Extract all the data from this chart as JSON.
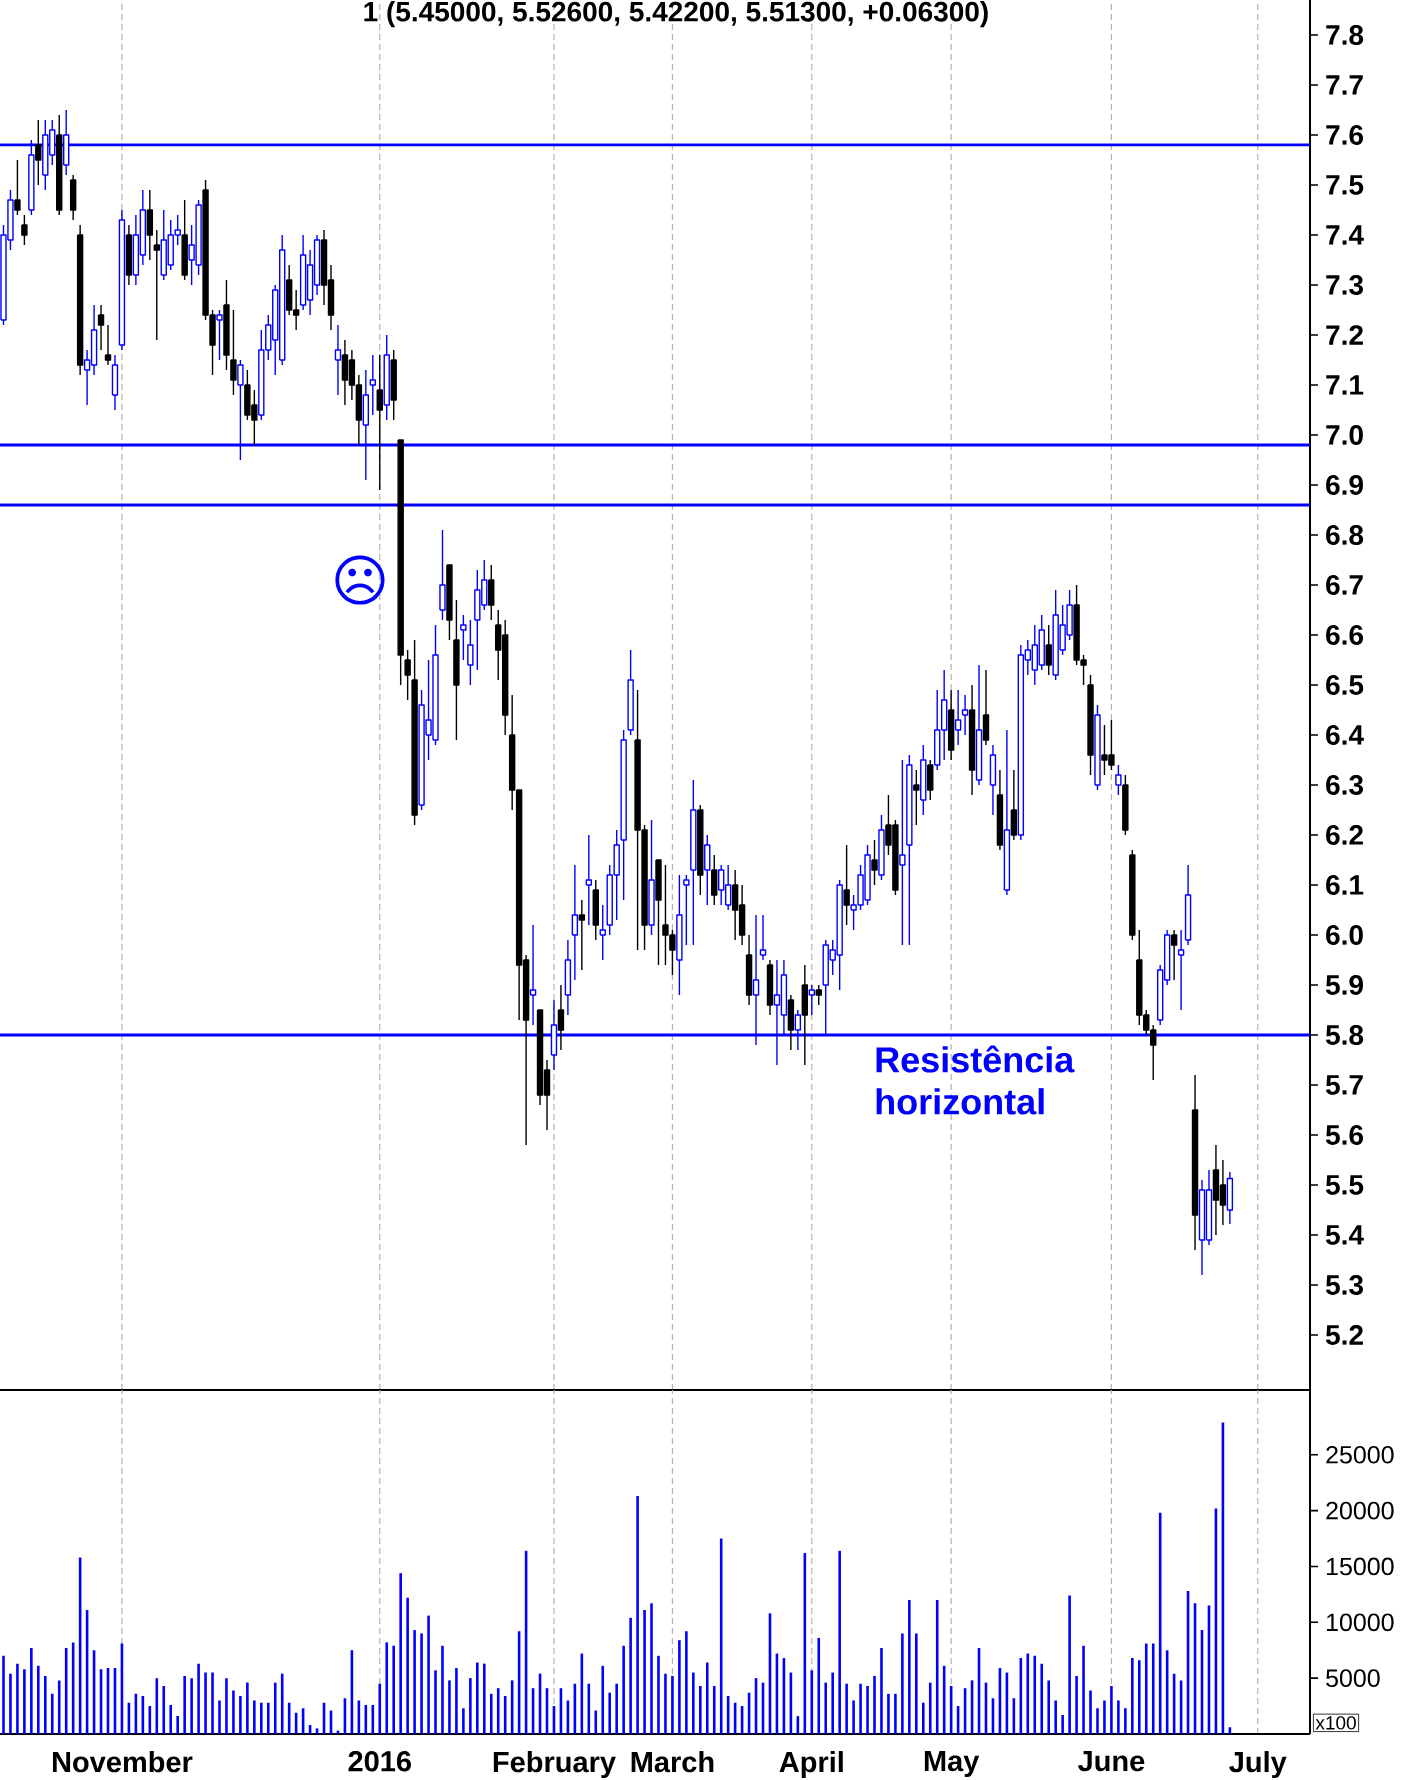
{
  "chart_data": [
    {
      "type": "candlestick",
      "title": "1 (5.45000, 5.52600, 5.42200, 5.51300, +0.06300)",
      "categories": [
        null,
        null,
        null,
        null,
        null,
        null,
        null,
        null,
        null,
        null,
        null,
        null,
        null,
        null,
        null,
        null,
        null,
        null,
        null,
        null,
        null,
        null,
        null,
        null,
        null,
        null,
        null,
        null,
        null,
        null,
        null,
        null,
        null,
        null,
        null,
        null,
        null,
        null,
        null,
        null,
        null,
        null,
        null,
        null,
        null,
        null,
        null,
        null,
        null,
        null,
        null,
        null,
        null,
        null,
        null,
        null,
        null,
        null,
        null,
        null,
        null,
        null,
        null,
        null,
        null,
        null,
        null,
        null,
        null,
        null,
        null,
        null,
        null,
        null,
        null,
        null,
        null,
        null,
        null,
        null,
        null,
        null,
        null,
        null,
        null,
        null,
        null,
        null,
        null,
        null,
        null,
        null,
        null,
        null,
        null,
        null,
        null,
        null,
        null,
        null,
        null,
        null,
        null,
        null,
        null,
        null,
        null,
        null,
        null,
        null,
        null,
        null,
        null,
        null,
        null,
        null,
        null,
        null,
        null,
        null,
        null,
        null,
        null,
        null,
        null,
        null,
        null,
        null,
        null,
        null,
        null,
        null,
        null,
        null,
        null,
        null,
        null,
        null,
        null,
        null,
        null,
        null,
        null,
        null,
        null,
        null,
        null,
        null,
        null,
        null,
        null,
        null,
        null,
        null,
        null,
        null,
        null,
        null,
        null,
        null,
        null,
        null,
        null,
        null,
        null,
        null,
        null,
        null,
        null,
        null,
        null,
        null,
        null,
        null,
        null,
        null,
        null,
        null,
        null,
        null,
        null,
        null,
        null,
        null,
        null,
        null,
        null,
        null
      ],
      "ohlc": [
        [
          7.23,
          7.42,
          7.22,
          7.4
        ],
        [
          7.39,
          7.49,
          7.37,
          7.47
        ],
        [
          7.47,
          7.55,
          7.44,
          7.45
        ],
        [
          7.42,
          7.44,
          7.38,
          7.4
        ],
        [
          7.45,
          7.59,
          7.44,
          7.56
        ],
        [
          7.58,
          7.63,
          7.5,
          7.55
        ],
        [
          7.52,
          7.63,
          7.49,
          7.6
        ],
        [
          7.56,
          7.63,
          7.54,
          7.61
        ],
        [
          7.6,
          7.64,
          7.44,
          7.45
        ],
        [
          7.54,
          7.65,
          7.52,
          7.6
        ],
        [
          7.51,
          7.52,
          7.43,
          7.45
        ],
        [
          7.4,
          7.42,
          7.12,
          7.14
        ],
        [
          7.13,
          7.17,
          7.06,
          7.15
        ],
        [
          7.14,
          7.26,
          7.12,
          7.21
        ],
        [
          7.24,
          7.26,
          7.17,
          7.22
        ],
        [
          7.16,
          7.22,
          7.14,
          7.15
        ],
        [
          7.08,
          7.16,
          7.05,
          7.14
        ],
        [
          7.18,
          7.45,
          7.17,
          7.43
        ],
        [
          7.4,
          7.42,
          7.3,
          7.32
        ],
        [
          7.32,
          7.44,
          7.3,
          7.4
        ],
        [
          7.36,
          7.49,
          7.34,
          7.45
        ],
        [
          7.45,
          7.49,
          7.35,
          7.4
        ],
        [
          7.38,
          7.41,
          7.19,
          7.37
        ],
        [
          7.32,
          7.45,
          7.31,
          7.39
        ],
        [
          7.34,
          7.43,
          7.33,
          7.4
        ],
        [
          7.4,
          7.44,
          7.38,
          7.41
        ],
        [
          7.4,
          7.47,
          7.31,
          7.32
        ],
        [
          7.35,
          7.42,
          7.3,
          7.38
        ],
        [
          7.34,
          7.47,
          7.32,
          7.46
        ],
        [
          7.49,
          7.51,
          7.23,
          7.24
        ],
        [
          7.24,
          7.25,
          7.12,
          7.18
        ],
        [
          7.23,
          7.25,
          7.15,
          7.24
        ],
        [
          7.26,
          7.31,
          7.13,
          7.16
        ],
        [
          7.15,
          7.25,
          7.08,
          7.11
        ],
        [
          7.1,
          7.15,
          6.95,
          7.14
        ],
        [
          7.1,
          7.13,
          7.03,
          7.04
        ],
        [
          7.06,
          7.09,
          6.98,
          7.03
        ],
        [
          7.04,
          7.21,
          7.03,
          7.17
        ],
        [
          7.17,
          7.24,
          7.15,
          7.22
        ],
        [
          7.19,
          7.3,
          7.12,
          7.29
        ],
        [
          7.15,
          7.4,
          7.14,
          7.37
        ],
        [
          7.31,
          7.34,
          7.24,
          7.25
        ],
        [
          7.25,
          7.29,
          7.21,
          7.24
        ],
        [
          7.26,
          7.4,
          7.25,
          7.36
        ],
        [
          7.27,
          7.37,
          7.24,
          7.34
        ],
        [
          7.3,
          7.4,
          7.28,
          7.39
        ],
        [
          7.39,
          7.41,
          7.26,
          7.3
        ],
        [
          7.31,
          7.34,
          7.21,
          7.24
        ],
        [
          7.15,
          7.22,
          7.08,
          7.17
        ],
        [
          7.16,
          7.19,
          7.06,
          7.11
        ],
        [
          7.15,
          7.17,
          7.07,
          7.1
        ],
        [
          7.1,
          7.12,
          6.98,
          7.03
        ],
        [
          7.02,
          7.13,
          6.91,
          7.08
        ],
        [
          7.1,
          7.16,
          7.04,
          7.11
        ],
        [
          7.09,
          7.16,
          6.89,
          7.05
        ],
        [
          7.06,
          7.2,
          7.03,
          7.16
        ],
        [
          7.15,
          7.17,
          7.03,
          7.07
        ],
        [
          6.99,
          6.99,
          6.5,
          6.56
        ],
        [
          6.55,
          6.57,
          6.47,
          6.52
        ],
        [
          6.51,
          6.59,
          6.22,
          6.24
        ],
        [
          6.26,
          6.49,
          6.25,
          6.46
        ],
        [
          6.4,
          6.55,
          6.35,
          6.43
        ],
        [
          6.39,
          6.62,
          6.38,
          6.56
        ],
        [
          6.65,
          6.81,
          6.63,
          6.7
        ],
        [
          6.74,
          6.74,
          6.59,
          6.63
        ],
        [
          6.59,
          6.67,
          6.39,
          6.5
        ],
        [
          6.61,
          6.64,
          6.55,
          6.62
        ],
        [
          6.54,
          6.63,
          6.5,
          6.58
        ],
        [
          6.63,
          6.73,
          6.53,
          6.69
        ],
        [
          6.66,
          6.75,
          6.65,
          6.71
        ],
        [
          6.71,
          6.74,
          6.63,
          6.66
        ],
        [
          6.62,
          6.65,
          6.51,
          6.57
        ],
        [
          6.6,
          6.63,
          6.4,
          6.44
        ],
        [
          6.4,
          6.48,
          6.25,
          6.29
        ],
        [
          6.29,
          6.29,
          5.83,
          5.94
        ],
        [
          5.95,
          5.96,
          5.58,
          5.83
        ],
        [
          5.88,
          6.02,
          5.82,
          5.89
        ],
        [
          5.85,
          5.85,
          5.66,
          5.68
        ],
        [
          5.73,
          5.75,
          5.61,
          5.68
        ],
        [
          5.76,
          5.87,
          5.73,
          5.82
        ],
        [
          5.85,
          5.9,
          5.77,
          5.81
        ],
        [
          5.88,
          5.99,
          5.84,
          5.95
        ],
        [
          6.0,
          6.14,
          5.91,
          6.04
        ],
        [
          6.04,
          6.07,
          5.93,
          6.03
        ],
        [
          6.1,
          6.2,
          6.02,
          6.11
        ],
        [
          6.09,
          6.11,
          5.99,
          6.02
        ],
        [
          6.0,
          6.06,
          5.95,
          6.01
        ],
        [
          6.02,
          6.14,
          6.0,
          6.12
        ],
        [
          6.12,
          6.21,
          6.03,
          6.18
        ],
        [
          6.19,
          6.41,
          6.07,
          6.39
        ],
        [
          6.41,
          6.57,
          6.4,
          6.51
        ],
        [
          6.39,
          6.49,
          5.97,
          6.21
        ],
        [
          6.21,
          6.22,
          5.97,
          6.02
        ],
        [
          6.02,
          6.23,
          6.0,
          6.11
        ],
        [
          6.15,
          6.15,
          5.94,
          6.07
        ],
        [
          6.02,
          6.14,
          5.94,
          6.0
        ],
        [
          6.0,
          6.01,
          5.92,
          5.97
        ],
        [
          5.95,
          6.12,
          5.88,
          6.04
        ],
        [
          6.1,
          6.12,
          5.98,
          6.11
        ],
        [
          6.13,
          6.31,
          5.98,
          6.25
        ],
        [
          6.25,
          6.26,
          6.08,
          6.12
        ],
        [
          6.13,
          6.2,
          6.06,
          6.18
        ],
        [
          6.13,
          6.16,
          6.06,
          6.08
        ],
        [
          6.09,
          6.14,
          6.06,
          6.13
        ],
        [
          6.06,
          6.14,
          6.05,
          6.1
        ],
        [
          6.1,
          6.13,
          5.99,
          6.05
        ],
        [
          6.06,
          6.1,
          5.98,
          6.0
        ],
        [
          5.96,
          6.0,
          5.86,
          5.88
        ],
        [
          5.88,
          6.04,
          5.78,
          5.91
        ],
        [
          5.96,
          6.04,
          5.95,
          5.97
        ],
        [
          5.94,
          5.95,
          5.84,
          5.86
        ],
        [
          5.86,
          5.95,
          5.74,
          5.88
        ],
        [
          5.84,
          5.95,
          5.8,
          5.92
        ],
        [
          5.87,
          5.88,
          5.77,
          5.81
        ],
        [
          5.81,
          5.85,
          5.77,
          5.84
        ],
        [
          5.9,
          5.94,
          5.74,
          5.84
        ],
        [
          5.88,
          5.9,
          5.84,
          5.89
        ],
        [
          5.89,
          5.9,
          5.86,
          5.88
        ],
        [
          5.9,
          5.99,
          5.8,
          5.98
        ],
        [
          5.95,
          5.99,
          5.92,
          5.97
        ],
        [
          5.96,
          6.11,
          5.89,
          6.1
        ],
        [
          6.09,
          6.18,
          6.02,
          6.06
        ],
        [
          6.05,
          6.08,
          6.01,
          6.06
        ],
        [
          6.06,
          6.14,
          6.05,
          6.12
        ],
        [
          6.07,
          6.18,
          6.06,
          6.16
        ],
        [
          6.15,
          6.19,
          6.1,
          6.13
        ],
        [
          6.12,
          6.24,
          6.11,
          6.21
        ],
        [
          6.22,
          6.28,
          6.16,
          6.18
        ],
        [
          6.22,
          6.23,
          6.08,
          6.09
        ],
        [
          6.14,
          6.35,
          5.98,
          6.16
        ],
        [
          6.18,
          6.36,
          5.98,
          6.34
        ],
        [
          6.3,
          6.33,
          6.22,
          6.29
        ],
        [
          6.27,
          6.38,
          6.24,
          6.35
        ],
        [
          6.34,
          6.35,
          6.27,
          6.29
        ],
        [
          6.34,
          6.49,
          6.33,
          6.41
        ],
        [
          6.41,
          6.53,
          6.35,
          6.47
        ],
        [
          6.45,
          6.49,
          6.35,
          6.37
        ],
        [
          6.41,
          6.49,
          6.38,
          6.43
        ],
        [
          6.44,
          6.48,
          6.4,
          6.45
        ],
        [
          6.45,
          6.5,
          6.28,
          6.33
        ],
        [
          6.31,
          6.54,
          6.3,
          6.41
        ],
        [
          6.44,
          6.53,
          6.38,
          6.39
        ],
        [
          6.3,
          6.38,
          6.24,
          6.36
        ],
        [
          6.28,
          6.33,
          6.17,
          6.18
        ],
        [
          6.09,
          6.41,
          6.08,
          6.21
        ],
        [
          6.25,
          6.33,
          6.19,
          6.2
        ],
        [
          6.2,
          6.58,
          6.19,
          6.56
        ],
        [
          6.55,
          6.59,
          6.52,
          6.57
        ],
        [
          6.53,
          6.62,
          6.5,
          6.58
        ],
        [
          6.54,
          6.64,
          6.53,
          6.61
        ],
        [
          6.58,
          6.62,
          6.52,
          6.54
        ],
        [
          6.52,
          6.69,
          6.51,
          6.64
        ],
        [
          6.57,
          6.66,
          6.56,
          6.62
        ],
        [
          6.6,
          6.69,
          6.59,
          6.66
        ],
        [
          6.66,
          6.7,
          6.54,
          6.55
        ],
        [
          6.55,
          6.56,
          6.5,
          6.54
        ],
        [
          6.5,
          6.52,
          6.32,
          6.36
        ],
        [
          6.3,
          6.46,
          6.29,
          6.44
        ],
        [
          6.36,
          6.42,
          6.32,
          6.35
        ],
        [
          6.36,
          6.43,
          6.33,
          6.34
        ],
        [
          6.3,
          6.34,
          6.28,
          6.32
        ],
        [
          6.3,
          6.32,
          6.2,
          6.21
        ],
        [
          6.16,
          6.17,
          5.99,
          6.0
        ],
        [
          5.95,
          6.01,
          5.82,
          5.84
        ],
        [
          5.84,
          5.85,
          5.8,
          5.81
        ],
        [
          5.81,
          5.82,
          5.71,
          5.78
        ],
        [
          5.83,
          5.94,
          5.82,
          5.93
        ],
        [
          5.91,
          6.01,
          5.9,
          6.0
        ],
        [
          6.0,
          6.01,
          5.91,
          5.98
        ],
        [
          5.96,
          6.01,
          5.85,
          5.97
        ],
        [
          5.99,
          6.14,
          5.98,
          6.08
        ],
        [
          5.65,
          5.72,
          5.37,
          5.44
        ],
        [
          5.39,
          5.51,
          5.32,
          5.49
        ],
        [
          5.39,
          5.53,
          5.38,
          5.49
        ],
        [
          5.53,
          5.58,
          5.4,
          5.47
        ],
        [
          5.5,
          5.55,
          5.42,
          5.46
        ],
        [
          5.45,
          5.526,
          5.422,
          5.513
        ],
        null,
        null,
        null,
        null,
        null,
        null,
        null,
        null,
        null,
        null,
        null
      ],
      "colors": [
        "#0000ff",
        "#0000ff",
        "#000000",
        "#000000",
        "#0000ff",
        "#000000",
        "#0000ff",
        "#0000ff",
        "#000000",
        "#0000ff",
        "#000000",
        "#000000",
        "#0000ff",
        "#0000ff",
        "#000000",
        "#000000",
        "#0000ff",
        "#0000ff",
        "#000000",
        "#0000ff",
        "#0000ff",
        "#000000",
        "#000000",
        "#0000ff",
        "#0000ff",
        "#0000ff",
        "#000000",
        "#0000ff",
        "#0000ff",
        "#000000",
        "#000000",
        "#0000ff",
        "#000000",
        "#000000",
        "#0000ff",
        "#000000",
        "#000000",
        "#0000ff",
        "#0000ff",
        "#0000ff",
        "#0000ff",
        "#000000",
        "#000000",
        "#0000ff",
        "#0000ff",
        "#0000ff",
        "#000000",
        "#000000",
        "#0000ff",
        "#000000",
        "#000000",
        "#000000",
        "#0000ff",
        "#0000ff",
        "#000000",
        "#0000ff",
        "#000000",
        "#000000",
        "#000000",
        "#000000",
        "#0000ff",
        "#0000ff",
        "#0000ff",
        "#0000ff",
        "#000000",
        "#000000",
        "#0000ff",
        "#0000ff",
        "#0000ff",
        "#0000ff",
        "#000000",
        "#000000",
        "#000000",
        "#000000",
        "#000000",
        "#000000",
        "#0000ff",
        "#000000",
        "#000000",
        "#0000ff",
        "#000000",
        "#0000ff",
        "#0000ff",
        "#000000",
        "#0000ff",
        "#000000",
        "#0000ff",
        "#0000ff",
        "#0000ff",
        "#0000ff",
        "#0000ff",
        "#000000",
        "#000000",
        "#0000ff",
        "#000000",
        "#000000",
        "#000000",
        "#0000ff",
        "#0000ff",
        "#0000ff",
        "#000000",
        "#0000ff",
        "#000000",
        "#0000ff",
        "#0000ff",
        "#000000",
        "#000000",
        "#000000",
        "#0000ff",
        "#0000ff",
        "#000000",
        "#0000ff",
        "#0000ff",
        "#000000",
        "#0000ff",
        "#000000",
        "#0000ff",
        "#000000",
        "#0000ff",
        "#0000ff",
        "#0000ff",
        "#000000",
        "#0000ff",
        "#0000ff",
        "#0000ff",
        "#000000",
        "#0000ff",
        "#000000",
        "#000000",
        "#0000ff",
        "#0000ff",
        "#000000",
        "#0000ff",
        "#000000",
        "#0000ff",
        "#0000ff",
        "#000000",
        "#0000ff",
        "#0000ff",
        "#000000",
        "#0000ff",
        "#000000",
        "#0000ff",
        "#000000",
        "#0000ff",
        "#000000",
        "#0000ff",
        "#0000ff",
        "#0000ff",
        "#0000ff",
        "#000000",
        "#0000ff",
        "#0000ff",
        "#0000ff",
        "#000000",
        "#000000",
        "#000000",
        "#0000ff",
        "#000000",
        "#000000",
        "#0000ff",
        "#000000",
        "#000000",
        "#000000",
        "#000000",
        "#000000",
        "#0000ff",
        "#0000ff",
        "#000000",
        "#0000ff",
        "#0000ff",
        "#000000",
        "#0000ff",
        "#0000ff",
        "#000000",
        "#000000",
        "#0000ff",
        null,
        null,
        null,
        null,
        null,
        null,
        null,
        null,
        null,
        null,
        null
      ],
      "ylim": [
        5.09,
        7.87
      ],
      "yticks": [
        5.2,
        5.3,
        5.4,
        5.5,
        5.6,
        5.7,
        5.8,
        5.9,
        {
          "value": 6.0,
          "label": "6.0"
        },
        6.1,
        6.2,
        6.3,
        6.4,
        6.5,
        6.6,
        6.7,
        6.8,
        6.9,
        {
          "value": 7.0,
          "label": "7.0"
        },
        7.1,
        7.2,
        7.3,
        7.4,
        7.5,
        7.6,
        7.7,
        7.8
      ],
      "grid": "x",
      "tick_labels": "y",
      "ref_lines": [
        {
          "axis": "y",
          "value": 7.58,
          "color": "#0000ff"
        },
        {
          "axis": "y",
          "value": 6.98,
          "color": "#0000ff"
        },
        {
          "axis": "y",
          "value": 6.86,
          "color": "#0000ff"
        },
        {
          "axis": "y",
          "value": 5.8,
          "color": "#0000ff"
        }
      ],
      "annotations": [
        {
          "text": "Resistência horizontal",
          "y": 5.8
        },
        "☹"
      ]
    },
    {
      "type": "bar",
      "categories": [
        null,
        null,
        null,
        null,
        null,
        null,
        null,
        null,
        null,
        null,
        null,
        null,
        null,
        null,
        null,
        null,
        null,
        "November",
        null,
        null,
        null,
        null,
        null,
        null,
        null,
        null,
        null,
        null,
        null,
        null,
        null,
        null,
        null,
        null,
        null,
        null,
        null,
        null,
        null,
        null,
        null,
        null,
        null,
        null,
        null,
        null,
        null,
        null,
        null,
        null,
        null,
        null,
        null,
        null,
        "2016",
        null,
        null,
        null,
        null,
        null,
        null,
        null,
        null,
        null,
        null,
        null,
        null,
        null,
        null,
        null,
        null,
        null,
        null,
        null,
        null,
        null,
        null,
        null,
        null,
        "February",
        null,
        null,
        null,
        null,
        null,
        null,
        null,
        null,
        null,
        null,
        null,
        null,
        null,
        null,
        null,
        null,
        "March",
        null,
        null,
        null,
        null,
        null,
        null,
        null,
        null,
        null,
        null,
        null,
        null,
        null,
        null,
        null,
        null,
        null,
        null,
        null,
        "April",
        null,
        null,
        null,
        null,
        null,
        null,
        null,
        null,
        null,
        null,
        null,
        null,
        null,
        null,
        null,
        null,
        null,
        null,
        null,
        "May",
        null,
        null,
        null,
        null,
        null,
        null,
        null,
        null,
        null,
        null,
        null,
        null,
        null,
        null,
        null,
        null,
        null,
        null,
        null,
        null,
        null,
        null,
        "June",
        null,
        null,
        null,
        null,
        null,
        null,
        null,
        null,
        null,
        null,
        null,
        null,
        null,
        null,
        null,
        null,
        null,
        null,
        null,
        null,
        "July",
        null,
        null,
        null,
        null,
        null,
        null,
        null
      ],
      "values": [
        7000,
        5400,
        6300,
        5800,
        7700,
        6100,
        5200,
        3600,
        4800,
        7700,
        8200,
        15800,
        11100,
        7500,
        5800,
        5900,
        5900,
        8100,
        2800,
        3600,
        3400,
        2500,
        5000,
        4300,
        2600,
        1600,
        5200,
        5000,
        6300,
        5500,
        5500,
        3000,
        5000,
        3900,
        3400,
        4600,
        3000,
        2800,
        2800,
        4600,
        5400,
        2800,
        1900,
        2300,
        800,
        500,
        2800,
        2100,
        300,
        3200,
        7500,
        3000,
        2600,
        2600,
        4500,
        8200,
        7900,
        14400,
        12200,
        9300,
        9000,
        10600,
        5700,
        7900,
        4800,
        5900,
        2300,
        5000,
        6400,
        6300,
        3600,
        4100,
        3400,
        4800,
        9200,
        16400,
        4100,
        5400,
        4100,
        2500,
        4100,
        3000,
        4500,
        7200,
        4500,
        2100,
        6100,
        3700,
        4500,
        7900,
        10400,
        21300,
        11100,
        11700,
        7000,
        5400,
        5200,
        8400,
        9200,
        5500,
        4300,
        6400,
        4300,
        17500,
        3400,
        2800,
        2500,
        3700,
        5000,
        4600,
        10800,
        7200,
        6800,
        5500,
        1600,
        16200,
        5700,
        8600,
        4600,
        5500,
        16400,
        4500,
        3000,
        4500,
        4300,
        5200,
        7700,
        3600,
        3600,
        9000,
        12000,
        9000,
        2800,
        4600,
        12000,
        6100,
        4300,
        2500,
        4100,
        4800,
        7700,
        4600,
        3200,
        5900,
        5500,
        3200,
        6800,
        7200,
        7000,
        6300,
        4800,
        3000,
        1700,
        12400,
        5200,
        7900,
        3900,
        2300,
        3000,
        4300,
        3000,
        2300,
        6800,
        6600,
        8100,
        8100,
        19800,
        7500,
        5400,
        4800,
        12800,
        11700,
        9300,
        11500,
        20200,
        27900,
        600,
        null,
        null,
        null,
        null,
        null,
        null,
        null,
        null,
        null,
        null,
        null
      ],
      "color": "#0000ff",
      "ylim": [
        0,
        30800
      ],
      "yticks": [
        5000,
        10000,
        15000,
        20000,
        25000
      ],
      "grid": "x",
      "annotations": [
        "x100"
      ]
    }
  ]
}
